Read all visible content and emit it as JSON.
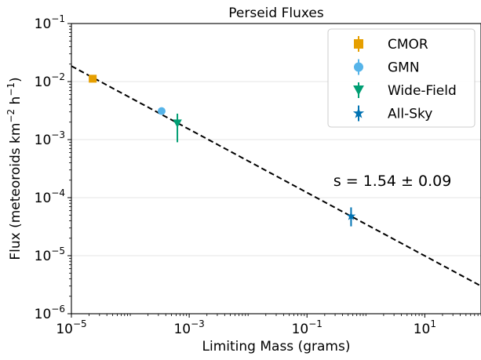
{
  "chart_data": {
    "type": "scatter",
    "title": "Perseid Fluxes",
    "xlabel": "Limiting Mass (grams)",
    "ylabel": "Flux  (meteoroids km",
    "ylabel_exp1": "−2",
    "ylabel_mid": " h",
    "ylabel_exp2": "−1",
    "ylabel_end": ")",
    "x_scale": "log",
    "y_scale": "log",
    "xlim": [
      1e-05,
      90
    ],
    "ylim": [
      1e-06,
      0.1
    ],
    "x_ticks": [
      {
        "value": 1e-05,
        "base": "10",
        "exp": "−5"
      },
      {
        "value": 0.001,
        "base": "10",
        "exp": "−3"
      },
      {
        "value": 0.1,
        "base": "10",
        "exp": "−1"
      },
      {
        "value": 10,
        "base": "10",
        "exp": "1"
      }
    ],
    "y_ticks": [
      {
        "value": 1e-06,
        "base": "10",
        "exp": "−6"
      },
      {
        "value": 1e-05,
        "base": "10",
        "exp": "−5"
      },
      {
        "value": 0.0001,
        "base": "10",
        "exp": "−4"
      },
      {
        "value": 0.001,
        "base": "10",
        "exp": "−3"
      },
      {
        "value": 0.01,
        "base": "10",
        "exp": "−2"
      },
      {
        "value": 0.1,
        "base": "10",
        "exp": "−1"
      }
    ],
    "grid": "horizontal",
    "legend_position": "top-right",
    "series": [
      {
        "name": "CMOR",
        "marker": "square",
        "color": "#E69F00",
        "points": [
          {
            "x": 2.3e-05,
            "y": 0.0112,
            "yerr_low": 0.0098,
            "yerr_high": 0.0128
          }
        ]
      },
      {
        "name": "GMN",
        "marker": "circle",
        "color": "#56B4E9",
        "points": [
          {
            "x": 0.00034,
            "y": 0.0031,
            "yerr_low": 0.0029,
            "yerr_high": 0.0033
          }
        ]
      },
      {
        "name": "Wide-Field",
        "marker": "triangle-down",
        "color": "#009E73",
        "points": [
          {
            "x": 0.00063,
            "y": 0.0019,
            "yerr_low": 0.0009,
            "yerr_high": 0.0028
          }
        ]
      },
      {
        "name": "All-Sky",
        "marker": "star",
        "color": "#0072B2",
        "points": [
          {
            "x": 0.56,
            "y": 4.8e-05,
            "yerr_low": 3.2e-05,
            "yerr_high": 6.8e-05
          }
        ]
      }
    ],
    "fit_line": {
      "style": "dashed",
      "color": "#000000",
      "points": [
        [
          1e-05,
          0.0185
        ],
        [
          90,
          3e-06
        ]
      ]
    },
    "annotation": {
      "text": "s = 1.54 ± 0.09",
      "x": 0.28,
      "y": 0.00016
    }
  }
}
